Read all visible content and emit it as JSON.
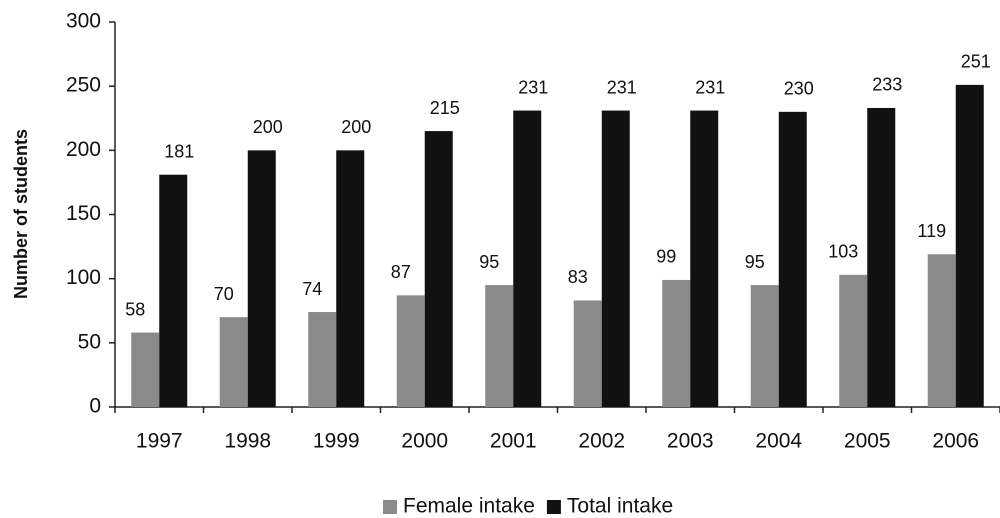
{
  "chart_data": {
    "type": "bar",
    "y_axis_label": "Number of students",
    "categories": [
      "1997",
      "1998",
      "1999",
      "2000",
      "2001",
      "2002",
      "2003",
      "2004",
      "2005",
      "2006"
    ],
    "series": [
      {
        "name": "Female intake",
        "color": "#8a8a8a",
        "values": [
          58,
          70,
          74,
          87,
          95,
          83,
          99,
          95,
          103,
          119
        ]
      },
      {
        "name": "Total intake",
        "color": "#111111",
        "values": [
          181,
          200,
          200,
          215,
          231,
          231,
          231,
          230,
          233,
          251
        ]
      }
    ],
    "ylim": [
      0,
      300
    ],
    "yticks": [
      0,
      50,
      100,
      150,
      200,
      250,
      300
    ],
    "grid": false,
    "legend": "bottom"
  }
}
